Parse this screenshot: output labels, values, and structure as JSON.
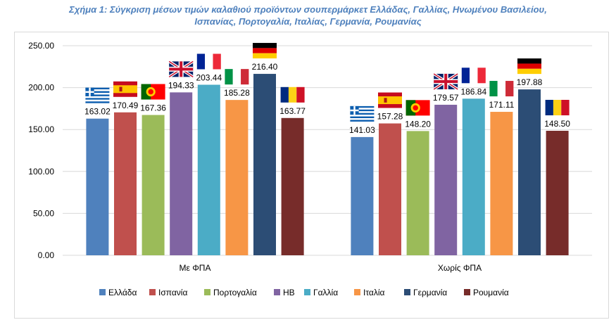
{
  "title_lines": [
    "Σχήμα 1: Σύγκριση μέσων τιμών καλαθιού προϊόντων σουπερμάρκετ Ελλάδας, Γαλλίας, Ηνωμένου Βασιλείου,",
    "Ισπανίας, Πορτογαλία, Ιταλίας, Γερμανία, Ρουμανίας"
  ],
  "chart_data": {
    "type": "bar",
    "title": "Σχήμα 1: Σύγκριση μέσων τιμών καλαθιού προϊόντων σουπερμάρκετ Ελλάδας, Γαλλίας, Ηνωμένου Βασιλείου, Ισπανίας, Πορτογαλία, Ιταλίας, Γερμανία, Ρουμανίας",
    "categories": [
      "Με ΦΠΑ",
      "Χωρίς ΦΠΑ"
    ],
    "ylim": [
      0,
      250
    ],
    "yticks": [
      "0.00",
      "50.00",
      "100.00",
      "150.00",
      "200.00",
      "250.00"
    ],
    "grid": true,
    "legend_position": "bottom",
    "series": [
      {
        "name": "Ελλάδα",
        "color": "#4f81bd",
        "flag": "greece-flag",
        "values": [
          163.02,
          141.03
        ],
        "labels": [
          "163.02",
          "141.03"
        ]
      },
      {
        "name": "Ισπανία",
        "color": "#c0504d",
        "flag": "spain-flag",
        "values": [
          170.49,
          157.28
        ],
        "labels": [
          "170.49",
          "157.28"
        ]
      },
      {
        "name": "Πορτογαλία",
        "color": "#9bbb59",
        "flag": "portugal-flag",
        "values": [
          167.36,
          148.2
        ],
        "labels": [
          "167.36",
          "148.20"
        ]
      },
      {
        "name": "ΗΒ",
        "color": "#8064a2",
        "flag": "uk-flag",
        "values": [
          194.33,
          179.57
        ],
        "labels": [
          "194.33",
          "179.57"
        ]
      },
      {
        "name": "Γαλλία",
        "color": "#4bacc6",
        "flag": "france-flag",
        "values": [
          203.44,
          186.84
        ],
        "labels": [
          "203.44",
          "186.84"
        ]
      },
      {
        "name": "Ιταλία",
        "color": "#f79646",
        "flag": "italy-flag",
        "values": [
          185.28,
          171.11
        ],
        "labels": [
          "185.28",
          "171.11"
        ]
      },
      {
        "name": "Γερμανία",
        "color": "#2c4d75",
        "flag": "germany-flag",
        "values": [
          216.4,
          197.88
        ],
        "labels": [
          "216.40",
          "197.88"
        ]
      },
      {
        "name": "Ρουμανία",
        "color": "#772c2a",
        "flag": "romania-flag",
        "values": [
          163.77,
          148.5
        ],
        "labels": [
          "163.77",
          "148.50"
        ]
      }
    ]
  }
}
